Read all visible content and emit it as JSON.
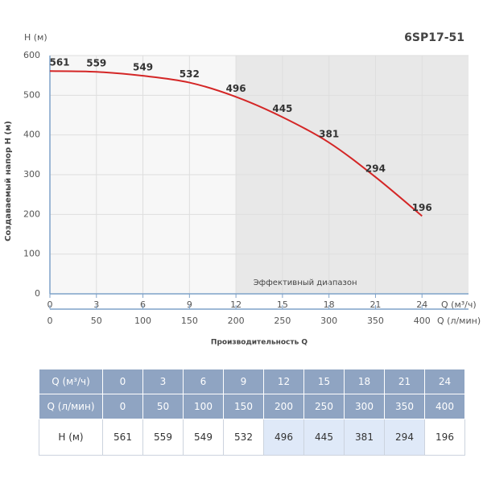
{
  "chart_data": {
    "type": "line",
    "title": "6SP17-51",
    "y_unit": "H (м)",
    "ylabel": "Создаваемый напор H (м)",
    "xlabel": "Производительность Q",
    "x_unit": "Q (м³/ч)",
    "x2_unit": "Q (л/мин)",
    "x": [
      0,
      3,
      6,
      9,
      12,
      15,
      18,
      21,
      24
    ],
    "series": [
      {
        "name": "H",
        "color": "#d42626",
        "values": [
          561,
          559,
          549,
          532,
          496,
          445,
          381,
          294,
          196
        ]
      }
    ],
    "xlim": [
      0,
      27
    ],
    "xticks": [
      0,
      3,
      6,
      9,
      12,
      15,
      18,
      21,
      24
    ],
    "x2lim": [
      0,
      450
    ],
    "x2ticks": [
      0,
      50,
      100,
      150,
      200,
      250,
      300,
      350,
      400
    ],
    "ylim": [
      0,
      600
    ],
    "yticks": [
      0,
      100,
      200,
      300,
      400,
      500,
      600
    ],
    "grid": true,
    "annotation": {
      "text": "Эффективный диапазон",
      "x_range": [
        12,
        27
      ]
    }
  },
  "table": {
    "rows": [
      {
        "label": "Q (м³/ч)",
        "cells": [
          0,
          3,
          6,
          9,
          12,
          15,
          18,
          21,
          24
        ]
      },
      {
        "label": "Q (л/мин)",
        "cells": [
          0,
          50,
          100,
          150,
          200,
          250,
          300,
          350,
          400
        ]
      },
      {
        "label": "H (м)",
        "cells": [
          561,
          559,
          549,
          532,
          496,
          445,
          381,
          294,
          196
        ]
      }
    ]
  }
}
